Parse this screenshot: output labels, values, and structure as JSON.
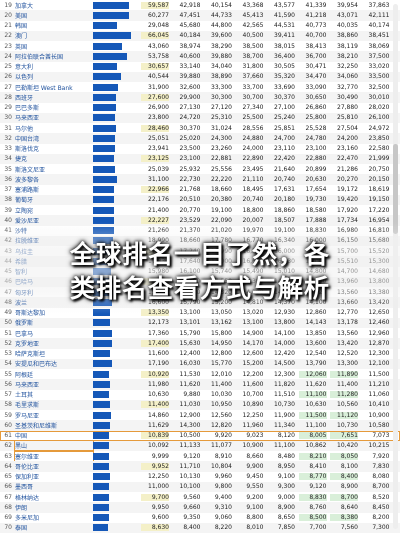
{
  "title_line1": "全球排名一目了然，各",
  "title_line2": "类排名查看方式与解析",
  "rows": [
    {
      "rank": "19",
      "name": "加拿大",
      "v": [
        "59,587",
        "42,918",
        "40,154",
        "43,368",
        "43,577",
        "41,339",
        "39,954",
        "37,863"
      ]
    },
    {
      "rank": "20",
      "name": "美国",
      "v": [
        "60,277",
        "47,451",
        "44,733",
        "45,413",
        "41,590",
        "41,218",
        "43,071",
        "42,111"
      ]
    },
    {
      "rank": "21",
      "name": "韩国",
      "v": [
        "29,048",
        "45,680",
        "44,800",
        "42,565",
        "44,531",
        "40,773",
        "40,035",
        "40,174"
      ]
    },
    {
      "rank": "22",
      "name": "澳门",
      "v": [
        "66,045",
        "40,184",
        "39,600",
        "40,500",
        "39,411",
        "40,700",
        "38,860",
        "38,451"
      ]
    },
    {
      "rank": "23",
      "name": "英国",
      "v": [
        "43,060",
        "38,974",
        "38,290",
        "38,500",
        "38,015",
        "38,413",
        "38,119",
        "38,069"
      ]
    },
    {
      "rank": "24",
      "name": "阿拉伯联合酋长国",
      "v": [
        "53,758",
        "40,600",
        "39,880",
        "38,700",
        "36,400",
        "36,700",
        "38,210",
        "37,500"
      ]
    },
    {
      "rank": "25",
      "name": "意大利",
      "v": [
        "30,657",
        "33,140",
        "34,040",
        "31,800",
        "30,505",
        "30,471",
        "32,250",
        "33,020"
      ]
    },
    {
      "rank": "26",
      "name": "以色列",
      "v": [
        "40,544",
        "39,880",
        "38,890",
        "37,660",
        "35,320",
        "34,470",
        "34,060",
        "33,500"
      ]
    },
    {
      "rank": "27",
      "name": "巴勒斯坦 West Bank",
      "v": [
        "31,900",
        "32,600",
        "33,300",
        "33,700",
        "33,690",
        "33,090",
        "32,770",
        "32,500"
      ]
    },
    {
      "rank": "28",
      "name": "西班牙",
      "v": [
        "27,600",
        "29,900",
        "30,300",
        "30,700",
        "30,370",
        "30,650",
        "30,490",
        "30,010"
      ]
    },
    {
      "rank": "29",
      "name": "巴巴多斯",
      "v": [
        "26,900",
        "27,130",
        "27,120",
        "27,340",
        "27,100",
        "26,860",
        "27,880",
        "28,020"
      ]
    },
    {
      "rank": "30",
      "name": "马来西亚",
      "v": [
        "23,800",
        "24,720",
        "25,310",
        "25,500",
        "25,240",
        "25,800",
        "25,810",
        "26,100"
      ]
    },
    {
      "rank": "31",
      "name": "马尔他",
      "v": [
        "28,460",
        "30,370",
        "31,024",
        "28,556",
        "25,851",
        "25,528",
        "27,504",
        "24,972"
      ]
    },
    {
      "rank": "32",
      "name": "中国台湾",
      "v": [
        "25,051",
        "25,020",
        "24,300",
        "24,880",
        "24,700",
        "24,780",
        "24,200",
        "23,850"
      ]
    },
    {
      "rank": "33",
      "name": "斯洛伐克",
      "v": [
        "23,941",
        "23,500",
        "23,260",
        "24,000",
        "23,110",
        "23,100",
        "23,160",
        "22,580"
      ]
    },
    {
      "rank": "34",
      "name": "捷克",
      "v": [
        "23,125",
        "23,100",
        "22,881",
        "22,890",
        "22,420",
        "22,880",
        "22,470",
        "21,999"
      ]
    },
    {
      "rank": "35",
      "name": "斯洛文尼亚",
      "v": [
        "25,039",
        "25,932",
        "25,556",
        "23,495",
        "21,640",
        "20,899",
        "21,286",
        "20,750"
      ]
    },
    {
      "rank": "36",
      "name": "波多黎各",
      "v": [
        "31,100",
        "22,730",
        "22,220",
        "21,110",
        "20,740",
        "20,630",
        "20,270",
        "20,150"
      ]
    },
    {
      "rank": "37",
      "name": "塞浦路斯",
      "v": [
        "22,966",
        "21,768",
        "18,660",
        "18,495",
        "17,631",
        "17,654",
        "19,172",
        "18,619"
      ]
    },
    {
      "rank": "38",
      "name": "葡萄牙",
      "v": [
        "22,176",
        "20,510",
        "20,380",
        "20,740",
        "20,180",
        "19,730",
        "19,420",
        "19,150"
      ]
    },
    {
      "rank": "39",
      "name": "立陶宛",
      "v": [
        "21,400",
        "20,770",
        "19,100",
        "18,800",
        "18,860",
        "18,580",
        "17,920",
        "17,220"
      ]
    },
    {
      "rank": "40",
      "name": "爱沙尼亚",
      "v": [
        "22,227",
        "23,529",
        "22,090",
        "20,007",
        "18,507",
        "17,888",
        "17,734",
        "16,954"
      ]
    },
    {
      "rank": "41",
      "name": "沙特",
      "v": [
        "21,260",
        "21,370",
        "21,020",
        "19,970",
        "19,100",
        "18,830",
        "16,980",
        "16,810"
      ]
    },
    {
      "rank": "42",
      "name": "拉脱维亚",
      "v": [
        "18,990",
        "18,660",
        "17,780",
        "16,770",
        "16,340",
        "16,000",
        "16,150",
        "15,680"
      ]
    },
    {
      "rank": "43",
      "name": "乌拉圭",
      "v": [
        "17,610",
        "17,240",
        "16,990",
        "16,360",
        "16,000",
        "15,900",
        "15,700",
        "15,520"
      ]
    },
    {
      "rank": "44",
      "name": "希腊",
      "v": [
        "17,830",
        "17,640",
        "17,000",
        "16,650",
        "16,430",
        "16,000",
        "15,510",
        "15,300"
      ]
    },
    {
      "rank": "45",
      "name": "智利",
      "v": [
        "15,980",
        "16,100",
        "15,740",
        "15,490",
        "15,010",
        "14,800",
        "14,700",
        "14,680"
      ]
    },
    {
      "rank": "46",
      "name": "巴哈马",
      "v": [
        "14,950",
        "14,790",
        "14,550",
        "14,390",
        "14,110",
        "14,090",
        "13,960",
        "13,800"
      ]
    },
    {
      "rank": "47",
      "name": "匈牙利",
      "v": [
        "15,000",
        "14,920",
        "14,320",
        "14,100",
        "14,000",
        "13,720",
        "13,560",
        "13,380"
      ]
    },
    {
      "rank": "48",
      "name": "波兰",
      "v": [
        "16,600",
        "15,790",
        "15,200",
        "14,810",
        "14,370",
        "14,100",
        "13,660",
        "13,420"
      ]
    },
    {
      "rank": "49",
      "name": "哥斯达黎加",
      "v": [
        "13,350",
        "13,100",
        "13,050",
        "13,020",
        "12,930",
        "12,860",
        "12,770",
        "12,650"
      ]
    },
    {
      "rank": "50",
      "name": "俄罗斯",
      "v": [
        "12,173",
        "13,101",
        "13,162",
        "13,100",
        "13,800",
        "14,143",
        "13,178",
        "12,460"
      ]
    },
    {
      "rank": "51",
      "name": "巴拿马",
      "v": [
        "17,360",
        "15,790",
        "15,800",
        "14,900",
        "14,100",
        "13,850",
        "13,560",
        "12,960"
      ]
    },
    {
      "rank": "52",
      "name": "克罗地亚",
      "v": [
        "17,400",
        "15,630",
        "14,950",
        "14,170",
        "14,000",
        "13,600",
        "13,420",
        "12,870"
      ]
    },
    {
      "rank": "53",
      "name": "哈萨克斯坦",
      "v": [
        "11,600",
        "12,400",
        "12,800",
        "12,600",
        "12,420",
        "12,540",
        "12,520",
        "12,300"
      ]
    },
    {
      "rank": "54",
      "name": "安提瓜和巴布达",
      "v": [
        "17,190",
        "16,030",
        "15,770",
        "15,200",
        "14,500",
        "13,790",
        "13,300",
        "12,100"
      ]
    },
    {
      "rank": "55",
      "name": "阿根廷",
      "v": [
        "10,920",
        "11,530",
        "12,010",
        "12,200",
        "12,300",
        "12,060",
        "11,890",
        "11,500"
      ]
    },
    {
      "rank": "56",
      "name": "马来西亚",
      "v": [
        "11,980",
        "11,620",
        "11,400",
        "11,600",
        "11,820",
        "11,620",
        "11,400",
        "11,210"
      ]
    },
    {
      "rank": "57",
      "name": "土耳其",
      "v": [
        "10,630",
        "9,880",
        "10,030",
        "10,700",
        "11,510",
        "11,100",
        "11,280",
        "11,060"
      ]
    },
    {
      "rank": "58",
      "name": "毛里求斯",
      "v": [
        "11,400",
        "11,030",
        "10,950",
        "10,890",
        "10,730",
        "10,630",
        "10,560",
        "10,410"
      ]
    },
    {
      "rank": "59",
      "name": "罗马尼亚",
      "v": [
        "14,860",
        "12,900",
        "12,560",
        "12,250",
        "11,900",
        "11,500",
        "11,120",
        "10,900"
      ]
    },
    {
      "rank": "60",
      "name": "圣基茨和尼维斯",
      "v": [
        "11,629",
        "14,300",
        "12,820",
        "11,960",
        "11,340",
        "11,100",
        "10,730",
        "10,580"
      ]
    },
    {
      "rank": "61",
      "name": "中国",
      "v": [
        "10,839",
        "10,500",
        "9,920",
        "9,023",
        "8,120",
        "8,005",
        "7,651",
        "7,073"
      ]
    },
    {
      "rank": "62",
      "name": "黑山",
      "v": [
        "10,092",
        "11,133",
        "11,077",
        "10,900",
        "11,100",
        "10,862",
        "10,420",
        "10,215"
      ]
    },
    {
      "rank": "63",
      "name": "塞尔维亚",
      "v": [
        "9,999",
        "9,120",
        "8,910",
        "8,660",
        "8,480",
        "8,210",
        "8,050",
        "7,920"
      ]
    },
    {
      "rank": "64",
      "name": "哥伦比亚",
      "v": [
        "9,952",
        "11,710",
        "10,804",
        "9,900",
        "8,950",
        "8,410",
        "8,100",
        "7,830"
      ]
    },
    {
      "rank": "65",
      "name": "保加利亚",
      "v": [
        "12,250",
        "10,130",
        "9,960",
        "9,450",
        "9,100",
        "8,770",
        "8,400",
        "8,080"
      ]
    },
    {
      "rank": "66",
      "name": "墨西哥",
      "v": [
        "11,000",
        "10,100",
        "9,800",
        "9,550",
        "9,300",
        "9,120",
        "8,900",
        "8,700"
      ]
    },
    {
      "rank": "67",
      "name": "格林纳达",
      "v": [
        "9,700",
        "9,560",
        "9,400",
        "9,200",
        "9,000",
        "8,830",
        "8,700",
        "8,520"
      ]
    },
    {
      "rank": "68",
      "name": "伊朗",
      "v": [
        "9,950",
        "9,660",
        "9,310",
        "9,100",
        "8,900",
        "8,760",
        "8,640",
        "8,450"
      ]
    },
    {
      "rank": "69",
      "name": "多米尼加",
      "v": [
        "9,600",
        "9,350",
        "9,060",
        "8,800",
        "8,650",
        "8,500",
        "8,380",
        "8,200"
      ]
    },
    {
      "rank": "70",
      "name": "泰国",
      "v": [
        "8,630",
        "8,400",
        "8,220",
        "8,010",
        "7,850",
        "7,700",
        "7,560",
        "7,300"
      ]
    }
  ],
  "highlight_rank": "61",
  "name_highlight_ranks": [
    "62",
    "63"
  ]
}
